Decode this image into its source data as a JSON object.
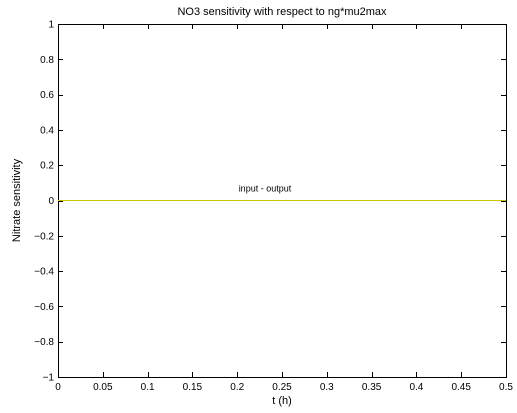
{
  "chart_data": {
    "type": "line",
    "title": "NO3 sensitivity with respect to ng*mu2max",
    "xlabel": "t (h)",
    "ylabel": "Nitrate sensitivity",
    "xlim": [
      0,
      0.5
    ],
    "ylim": [
      -1,
      1
    ],
    "x_ticks": [
      0,
      0.05,
      0.1,
      0.15,
      0.2,
      0.25,
      0.3,
      0.35,
      0.4,
      0.45,
      0.5
    ],
    "x_tick_labels": [
      "0",
      "0.05",
      "0.1",
      "0.15",
      "0.2",
      "0.25",
      "0.3",
      "0.35",
      "0.4",
      "0.45",
      "0.5"
    ],
    "y_ticks": [
      1,
      0.8,
      0.6,
      0.4,
      0.2,
      0,
      -0.2,
      -0.4,
      -0.6,
      -0.8,
      -1
    ],
    "y_tick_labels": [
      "1",
      "0.8",
      "0.6",
      "0.4",
      "0.2",
      "0",
      "−0.2",
      "−0.4",
      "−0.6",
      "−0.8",
      "−1"
    ],
    "grid": false,
    "series": [
      {
        "name": "input - output",
        "color": "#c8c800",
        "x": [
          0,
          0.5
        ],
        "y": [
          0,
          0
        ]
      }
    ],
    "annotations": [
      {
        "text": "input - output",
        "x": 0.231,
        "y": 0.05
      }
    ]
  }
}
